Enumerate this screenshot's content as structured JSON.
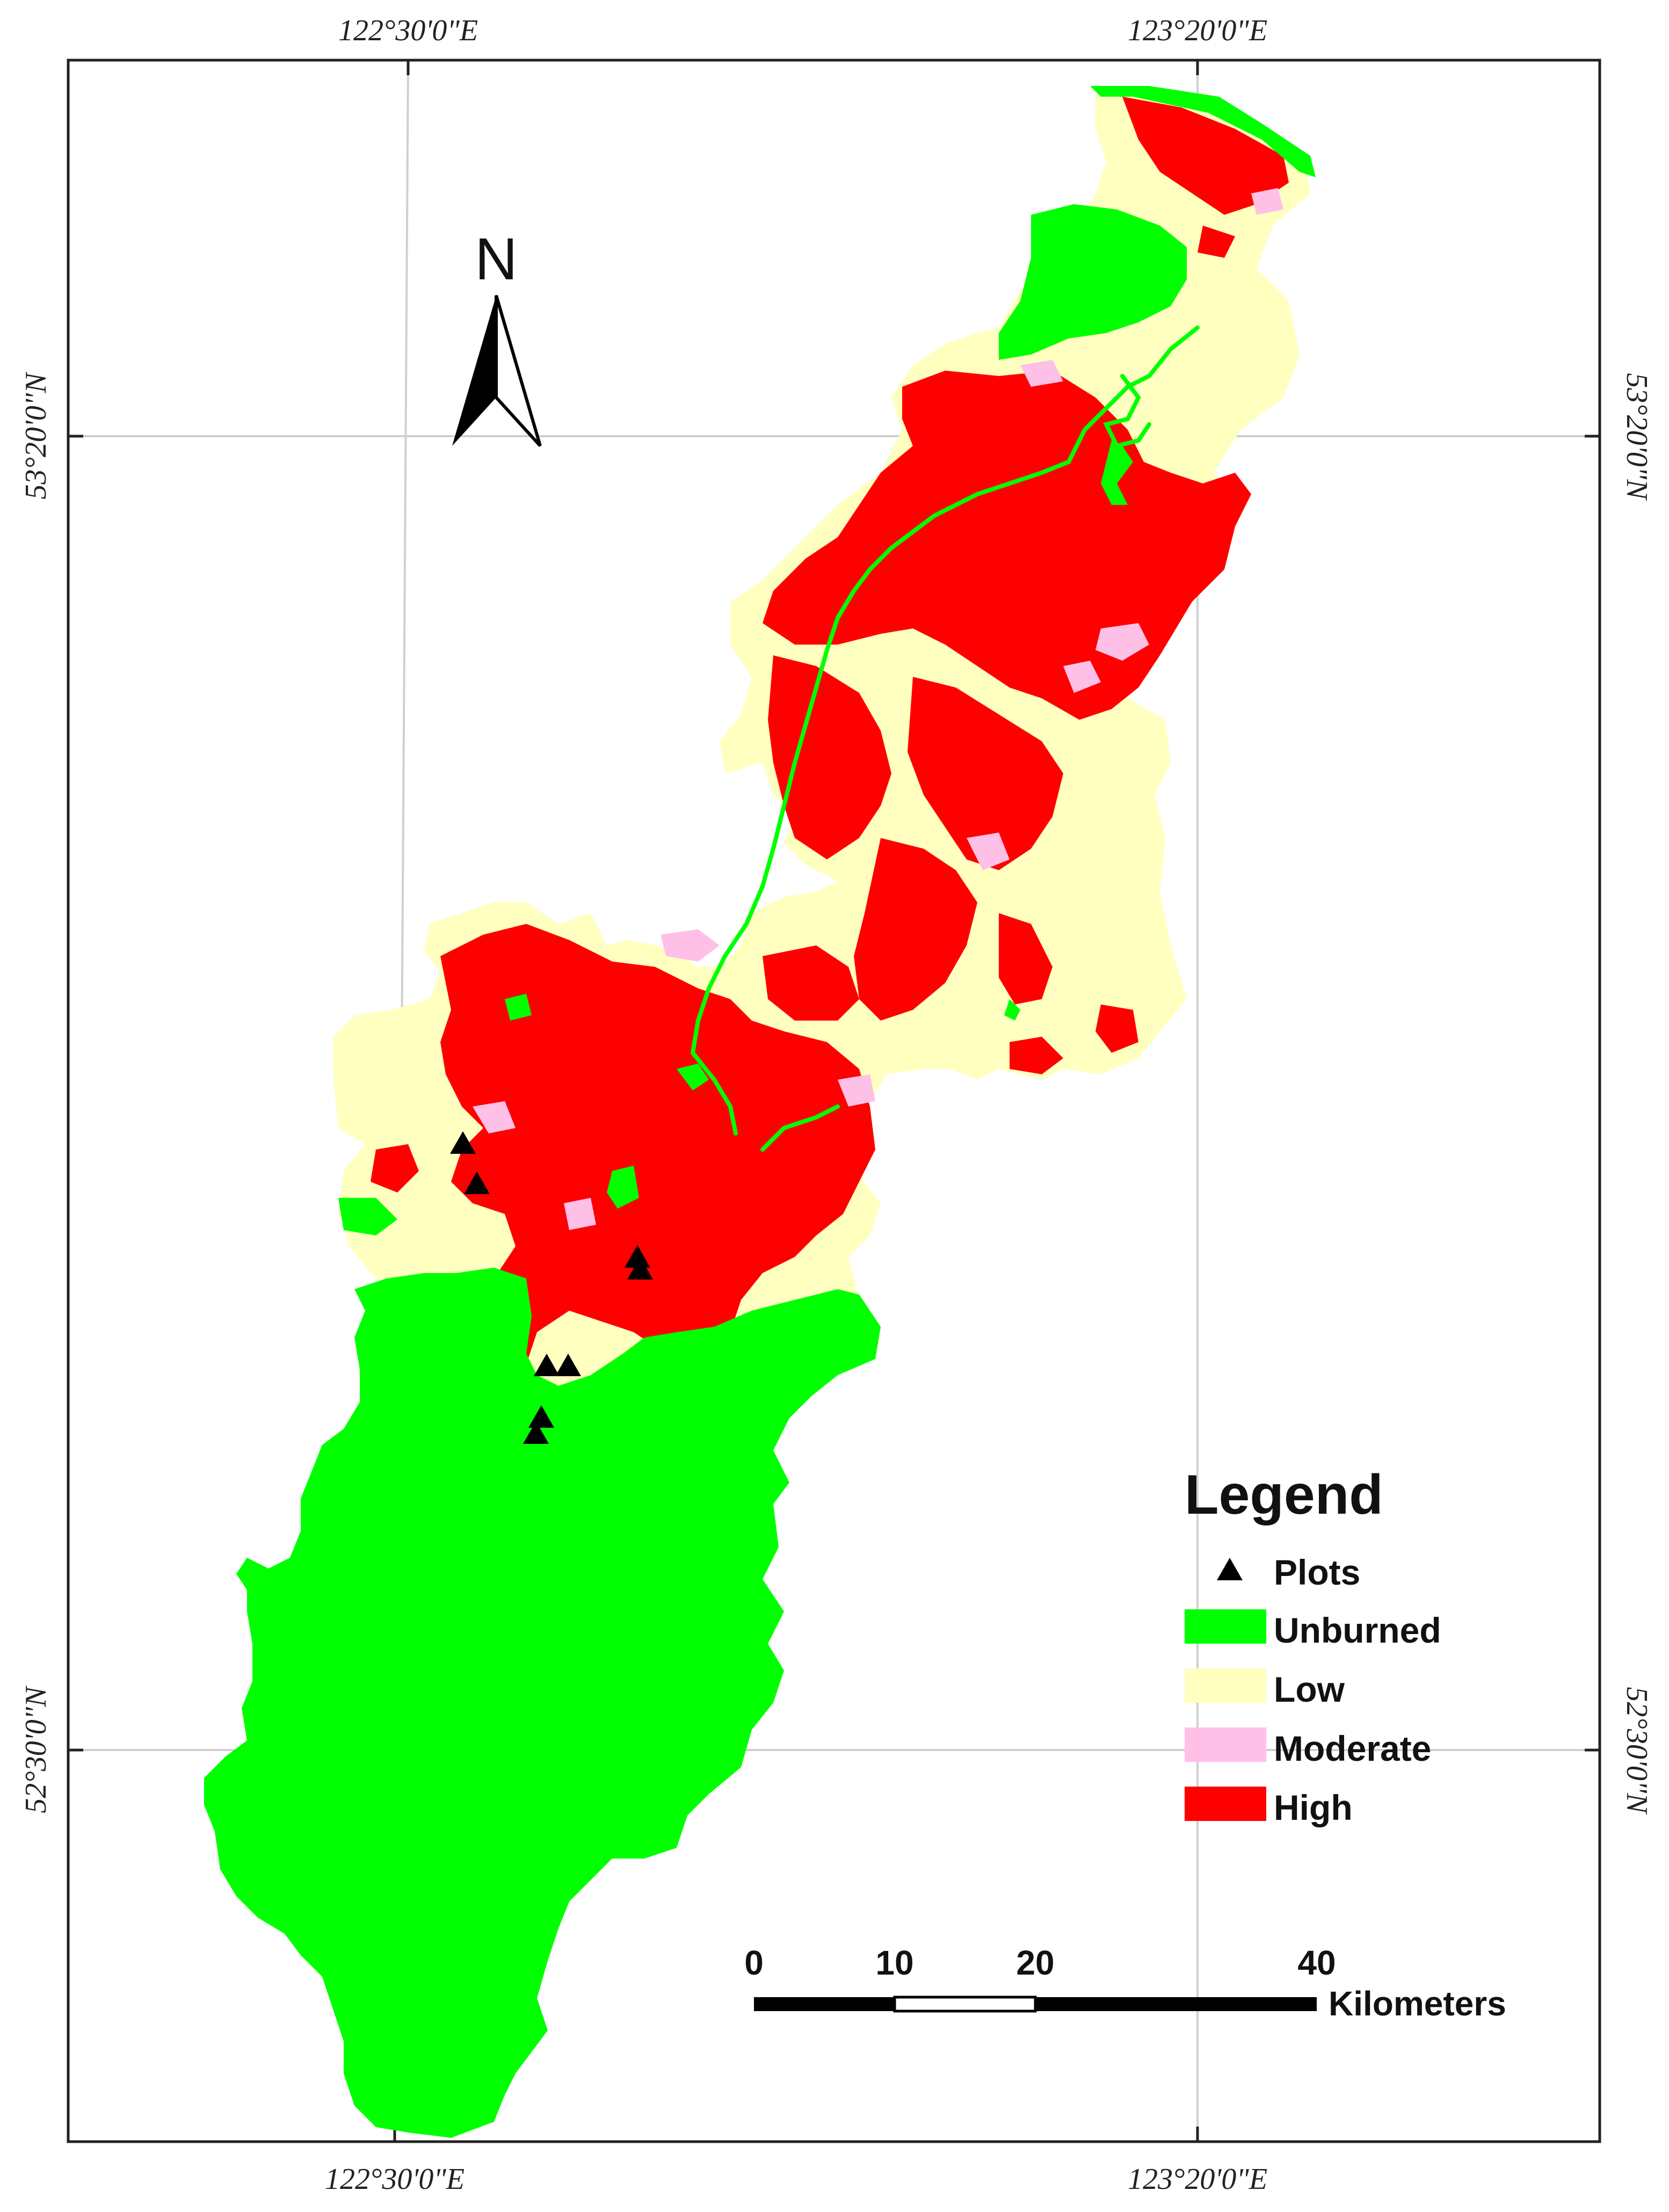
{
  "map": {
    "graticule": {
      "top_labels": [
        "122°30'0\"E",
        "123°20'0\"E"
      ],
      "bottom_labels": [
        "122°30'0\"E",
        "123°20'0\"E"
      ],
      "left_labels": [
        "53°20'0\"N",
        "52°30'0\"N"
      ],
      "right_labels": [
        "53°20'0\"N",
        "52°30'0\"N"
      ]
    },
    "north_arrow": {
      "label": "N"
    },
    "legend": {
      "title": "Legend",
      "items": [
        {
          "label": "Plots",
          "symbol": "triangle",
          "color": "#000000"
        },
        {
          "label": "Unburned",
          "symbol": "patch",
          "color": "#00FF00"
        },
        {
          "label": "Low",
          "symbol": "patch",
          "color": "#FFFFC0"
        },
        {
          "label": "Moderate",
          "symbol": "patch",
          "color": "#FFC0E8"
        },
        {
          "label": "High",
          "symbol": "patch",
          "color": "#FF0000"
        }
      ]
    },
    "scale_bar": {
      "ticks": [
        "0",
        "10",
        "20",
        "40"
      ],
      "unit": "Kilometers"
    },
    "colors": {
      "unburned": "#00FF00",
      "low": "#FFFFC0",
      "moderate": "#FFC0E8",
      "high": "#FF0000",
      "plots": "#000000"
    }
  }
}
